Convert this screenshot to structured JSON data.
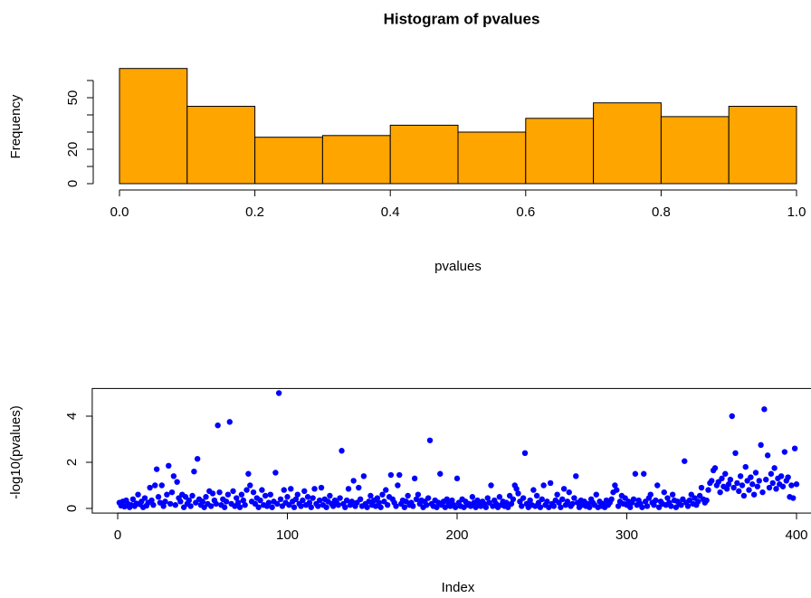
{
  "chart_data": [
    {
      "type": "histogram",
      "title": "Histogram of pvalues",
      "xlabel": "pvalues",
      "ylabel": "Frequency",
      "bins": [
        0,
        0.1,
        0.2,
        0.3,
        0.4,
        0.5,
        0.6,
        0.7,
        0.8,
        0.9,
        1
      ],
      "values": [
        67,
        45,
        27,
        28,
        34,
        30,
        38,
        47,
        39,
        45
      ],
      "color": "#ffa500",
      "xlim": [
        0,
        1
      ],
      "xticks": [
        {
          "value": 0,
          "label": "0.0"
        },
        0.2,
        0.4,
        0.6,
        0.8,
        {
          "value": 1,
          "label": "1.0"
        }
      ],
      "ylim": [
        0,
        68
      ],
      "yticks": [
        0,
        {
          "value": 10,
          "label": null
        },
        20,
        {
          "value": 30,
          "label": null
        },
        {
          "value": 40,
          "label": null
        },
        50,
        {
          "value": 60,
          "label": null
        }
      ]
    },
    {
      "type": "scatter",
      "xlabel": "Index",
      "ylabel": "-log10(pvalues)",
      "color": "#0000ff",
      "xlim": [
        -15,
        416
      ],
      "ylim": [
        -0.2,
        5.2
      ],
      "xticks": [
        0,
        100,
        200,
        300,
        400
      ],
      "yticks": [
        0,
        2,
        4
      ],
      "x": [
        1,
        2,
        3,
        4,
        5,
        6,
        7,
        8,
        9,
        10,
        11,
        12,
        13,
        14,
        15,
        16,
        17,
        18,
        19,
        20,
        21,
        22,
        23,
        24,
        25,
        26,
        27,
        28,
        29,
        30,
        31,
        32,
        33,
        34,
        35,
        36,
        37,
        38,
        39,
        40,
        41,
        42,
        43,
        44,
        45,
        46,
        47,
        48,
        49,
        50,
        51,
        52,
        53,
        54,
        55,
        56,
        57,
        58,
        59,
        60,
        61,
        62,
        63,
        64,
        65,
        66,
        67,
        68,
        69,
        70,
        71,
        72,
        73,
        74,
        75,
        76,
        77,
        78,
        79,
        80,
        81,
        82,
        83,
        84,
        85,
        86,
        87,
        88,
        89,
        90,
        91,
        92,
        93,
        94,
        95,
        96,
        97,
        98,
        99,
        100,
        101,
        102,
        103,
        104,
        105,
        106,
        107,
        108,
        109,
        110,
        111,
        112,
        113,
        114,
        115,
        116,
        117,
        118,
        119,
        120,
        121,
        122,
        123,
        124,
        125,
        126,
        127,
        128,
        129,
        130,
        131,
        132,
        133,
        134,
        135,
        136,
        137,
        138,
        139,
        140,
        141,
        142,
        143,
        144,
        145,
        146,
        147,
        148,
        149,
        150,
        151,
        152,
        153,
        154,
        155,
        156,
        157,
        158,
        159,
        160,
        161,
        162,
        163,
        164,
        165,
        166,
        167,
        168,
        169,
        170,
        171,
        172,
        173,
        174,
        175,
        176,
        177,
        178,
        179,
        180,
        181,
        182,
        183,
        184,
        185,
        186,
        187,
        188,
        189,
        190,
        191,
        192,
        193,
        194,
        195,
        196,
        197,
        198,
        199,
        200,
        201,
        202,
        203,
        204,
        205,
        206,
        207,
        208,
        209,
        210,
        211,
        212,
        213,
        214,
        215,
        216,
        217,
        218,
        219,
        220,
        221,
        222,
        223,
        224,
        225,
        226,
        227,
        228,
        229,
        230,
        231,
        232,
        233,
        234,
        235,
        236,
        237,
        238,
        239,
        240,
        241,
        242,
        243,
        244,
        245,
        246,
        247,
        248,
        249,
        250,
        251,
        252,
        253,
        254,
        255,
        256,
        257,
        258,
        259,
        260,
        261,
        262,
        263,
        264,
        265,
        266,
        267,
        268,
        269,
        270,
        271,
        272,
        273,
        274,
        275,
        276,
        277,
        278,
        279,
        280,
        281,
        282,
        283,
        284,
        285,
        286,
        287,
        288,
        289,
        290,
        291,
        292,
        293,
        294,
        295,
        296,
        297,
        298,
        299,
        300,
        301,
        302,
        303,
        304,
        305,
        306,
        307,
        308,
        309,
        310,
        311,
        312,
        313,
        314,
        315,
        316,
        317,
        318,
        319,
        320,
        321,
        322,
        323,
        324,
        325,
        326,
        327,
        328,
        329,
        330,
        331,
        332,
        333,
        334,
        335,
        336,
        337,
        338,
        339,
        340,
        341,
        342,
        343,
        344,
        345,
        346,
        347,
        348,
        349,
        350,
        351,
        352,
        353,
        354,
        355,
        356,
        357,
        358,
        359,
        360,
        361,
        362,
        363,
        364,
        365,
        366,
        367,
        368,
        369,
        370,
        371,
        372,
        373,
        374,
        375,
        376,
        377,
        378,
        379,
        380,
        381,
        382,
        383,
        384,
        385,
        386,
        387,
        388,
        389,
        390,
        391,
        392,
        393,
        394,
        395,
        396,
        397,
        398,
        399,
        400
      ],
      "values": [
        0.25,
        0.12,
        0.3,
        0.08,
        0.35,
        0.2,
        0.05,
        0.15,
        0.4,
        0.1,
        0.22,
        0.6,
        0.18,
        0.3,
        0.05,
        0.45,
        0.12,
        0.25,
        0.9,
        0.35,
        0.15,
        1.0,
        1.7,
        0.5,
        0.25,
        1.0,
        0.1,
        0.3,
        0.6,
        1.85,
        0.2,
        0.7,
        1.4,
        0.15,
        1.15,
        0.45,
        0.3,
        0.6,
        0.05,
        0.5,
        0.2,
        0.35,
        0.1,
        0.55,
        1.6,
        0.25,
        2.15,
        0.4,
        0.15,
        0.3,
        0.05,
        0.5,
        0.2,
        0.75,
        0.1,
        0.65,
        0.35,
        0.2,
        3.6,
        0.7,
        0.15,
        0.4,
        0.05,
        0.3,
        0.6,
        3.75,
        0.2,
        0.75,
        0.1,
        0.45,
        0.25,
        0.05,
        0.6,
        0.35,
        0.15,
        0.8,
        1.5,
        1.0,
        0.3,
        0.7,
        0.2,
        0.45,
        0.05,
        0.35,
        0.8,
        0.15,
        0.55,
        0.1,
        0.25,
        0.6,
        0.05,
        0.3,
        1.55,
        0.2,
        5.0,
        0.4,
        0.1,
        0.8,
        0.25,
        0.5,
        0.15,
        0.85,
        0.3,
        0.05,
        0.4,
        0.6,
        0.2,
        0.1,
        0.35,
        0.75,
        0.15,
        0.5,
        0.25,
        0.05,
        0.45,
        0.85,
        0.2,
        0.1,
        0.35,
        0.9,
        0.15,
        0.4,
        0.05,
        0.3,
        0.55,
        0.2,
        0.1,
        0.35,
        0.25,
        0.15,
        0.45,
        2.5,
        0.2,
        0.05,
        0.35,
        0.85,
        0.15,
        0.3,
        1.2,
        0.1,
        0.25,
        0.9,
        0.4,
        0.1,
        1.4,
        0.2,
        0.05,
        0.3,
        0.55,
        0.15,
        0.35,
        0.1,
        0.45,
        0.25,
        0.05,
        0.6,
        0.3,
        0.8,
        0.15,
        0.5,
        1.45,
        0.4,
        0.25,
        0.1,
        1.0,
        1.45,
        0.2,
        0.35,
        0.05,
        0.3,
        0.55,
        0.15,
        0.25,
        0.1,
        1.3,
        0.4,
        0.6,
        0.2,
        0.35,
        0.05,
        0.3,
        0.15,
        0.45,
        2.95,
        0.2,
        0.1,
        0.35,
        0.05,
        0.25,
        1.5,
        0.15,
        0.3,
        0.05,
        0.4,
        0.2,
        0.1,
        0.35,
        0.15,
        0.05,
        1.3,
        0.25,
        0.1,
        0.4,
        0.05,
        0.3,
        0.15,
        0.2,
        0.1,
        0.5,
        0.25,
        0.05,
        0.35,
        0.15,
        0.1,
        0.3,
        0.2,
        0.05,
        0.45,
        0.25,
        1.0,
        0.1,
        0.35,
        0.2,
        0.05,
        0.5,
        0.15,
        0.3,
        0.1,
        0.25,
        0.05,
        0.55,
        0.2,
        0.4,
        1.0,
        0.85,
        0.65,
        0.3,
        0.1,
        0.45,
        2.4,
        0.2,
        0.05,
        0.35,
        0.15,
        0.8,
        0.1,
        0.55,
        0.25,
        0.05,
        0.4,
        1.0,
        0.15,
        0.3,
        0.05,
        1.1,
        0.2,
        0.1,
        0.35,
        0.6,
        0.25,
        0.05,
        0.4,
        0.85,
        0.15,
        0.3,
        0.7,
        0.1,
        0.2,
        0.45,
        1.4,
        0.25,
        0.05,
        0.35,
        0.15,
        0.3,
        0.1,
        0.2,
        0.05,
        0.4,
        0.25,
        0.15,
        0.6,
        0.05,
        0.3,
        0.1,
        0.2,
        0.05,
        0.35,
        0.15,
        0.25,
        0.4,
        0.7,
        1.0,
        0.8,
        0.1,
        0.3,
        0.55,
        0.2,
        0.45,
        0.15,
        0.3,
        0.05,
        0.25,
        0.4,
        1.5,
        0.15,
        0.35,
        0.2,
        0.05,
        1.5,
        0.3,
        0.1,
        0.45,
        0.6,
        0.25,
        0.15,
        0.35,
        1.0,
        0.05,
        0.3,
        0.2,
        0.7,
        0.15,
        0.45,
        0.25,
        0.1,
        0.6,
        0.35,
        0.05,
        0.3,
        0.2,
        0.15,
        0.4,
        2.05,
        0.25,
        0.1,
        0.35,
        0.6,
        0.2,
        0.45,
        0.15,
        0.3,
        0.55,
        0.9,
        0.4,
        0.25,
        0.35,
        0.8,
        1.1,
        1.2,
        1.65,
        1.75,
        1.0,
        1.15,
        0.7,
        1.3,
        0.95,
        1.5,
        0.85,
        1.05,
        1.25,
        4.0,
        0.9,
        2.4,
        1.1,
        0.75,
        1.4,
        1.0,
        0.55,
        1.8,
        1.2,
        0.8,
        1.35,
        1.05,
        0.6,
        1.55,
        0.95,
        1.2,
        2.75,
        0.7,
        4.3,
        1.25,
        2.3,
        0.9,
        1.5,
        1.1,
        1.75,
        0.85,
        1.3,
        1.05,
        1.4,
        0.95,
        2.45,
        1.2,
        1.35,
        0.5,
        1.0,
        0.45,
        2.6,
        1.05
      ]
    }
  ]
}
